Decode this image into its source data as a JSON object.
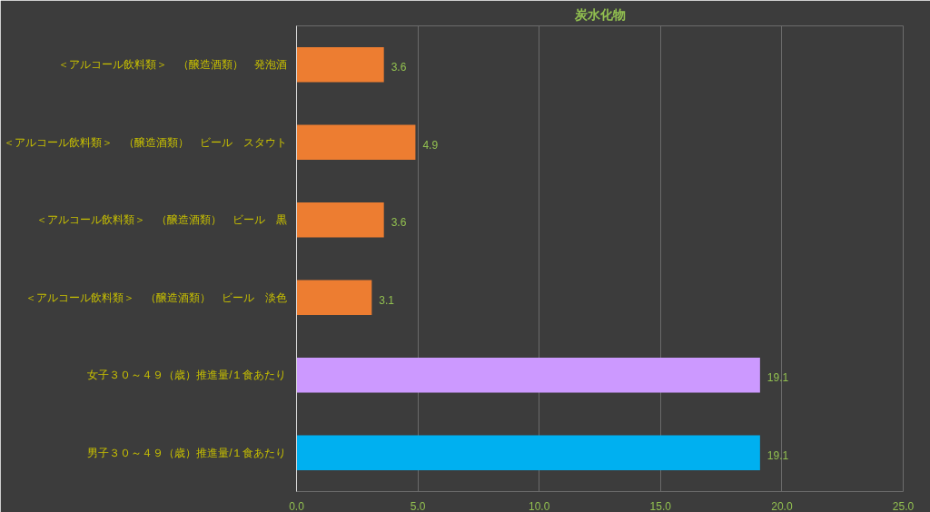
{
  "chart_data": {
    "type": "bar",
    "orientation": "horizontal",
    "title": "炭水化物",
    "categories": [
      "＜アルコール飲料類＞　（醸造酒類）　発泡酒",
      "＜アルコール飲料類＞　（醸造酒類）　ビール　スタウト",
      "＜アルコール飲料類＞　（醸造酒類）　ビール　黒",
      "＜アルコール飲料類＞　（醸造酒類）　ビール　淡色",
      "女子３０～４９（歳）推進量/１食あたり",
      "男子３０～４９（歳）推進量/１食あたり"
    ],
    "values": [
      3.6,
      4.9,
      3.6,
      3.1,
      19.1,
      19.1
    ],
    "colors": [
      "#ed7d31",
      "#ed7d31",
      "#ed7d31",
      "#ed7d31",
      "#cc99ff",
      "#00b0f0"
    ],
    "xlim": [
      0,
      25
    ],
    "xticks": [
      {
        "value": 0,
        "label": "0.0"
      },
      {
        "value": 5,
        "label": "5.0"
      },
      {
        "value": 10,
        "label": "10.0"
      },
      {
        "value": 15,
        "label": "15.0"
      },
      {
        "value": 20,
        "label": "20.0"
      },
      {
        "value": 25,
        "label": "25.0"
      }
    ],
    "grid": "x",
    "data_labels": true
  }
}
